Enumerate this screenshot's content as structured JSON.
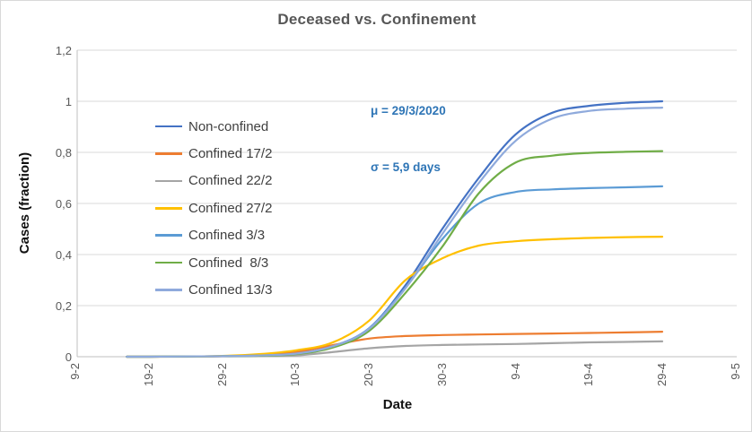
{
  "chart": {
    "title": "Deceased vs. Confinement",
    "annotation": {
      "line1": "μ = 29/3/2020",
      "line2": "σ = 5,9 days",
      "color": "#2e75b6"
    }
  },
  "chart_data": {
    "type": "line",
    "title": "Deceased vs. Confinement",
    "xlabel": "Date",
    "ylabel": "Cases (fraction)",
    "ylim": [
      0,
      1.2
    ],
    "grid": "horizontal",
    "legend_position": "inside-left",
    "annotation_lines": [
      "μ = 29/3/2020",
      "σ = 5,9 days"
    ],
    "y_tick_labels": [
      "1,2",
      "1",
      "0,8",
      "0,6",
      "0,4",
      "0,2",
      "0"
    ],
    "y_tick_values": [
      1.2,
      1.0,
      0.8,
      0.6,
      0.4,
      0.2,
      0
    ],
    "x_tick_labels": [
      "9-2",
      "19-2",
      "29-2",
      "10-3",
      "20-3",
      "30-3",
      "9-4",
      "19-4",
      "29-4",
      "9-5"
    ],
    "x_tick_day_offsets": [
      0,
      10,
      20,
      30,
      40,
      50,
      60,
      70,
      80,
      90
    ],
    "x_labels": [
      "16-2",
      "19-2",
      "24-2",
      "29-2",
      "5-3",
      "10-3",
      "15-3",
      "20-3",
      "25-3",
      "30-3",
      "4-4",
      "9-4",
      "14-4",
      "19-4",
      "24-4",
      "29-4"
    ],
    "x_days_since_9_2": [
      7,
      10,
      15,
      20,
      25,
      30,
      35,
      40,
      45,
      50,
      55,
      60,
      65,
      70,
      75,
      80
    ],
    "series": [
      {
        "name": "Non-confined",
        "color": "#4472C4",
        "values": [
          0,
          0,
          0.001,
          0.002,
          0.005,
          0.012,
          0.04,
          0.11,
          0.28,
          0.5,
          0.7,
          0.87,
          0.955,
          0.982,
          0.994,
          1.0
        ]
      },
      {
        "name": "Confined 17/2",
        "color": "#ED7D31",
        "values": [
          0,
          0,
          0.001,
          0.002,
          0.008,
          0.018,
          0.045,
          0.071,
          0.081,
          0.085,
          0.087,
          0.089,
          0.091,
          0.093,
          0.095,
          0.098
        ]
      },
      {
        "name": "Confined 22/2",
        "color": "#A5A5A5",
        "values": [
          0,
          0,
          0.0,
          0.001,
          0.002,
          0.005,
          0.018,
          0.033,
          0.042,
          0.046,
          0.048,
          0.05,
          0.053,
          0.056,
          0.058,
          0.06
        ]
      },
      {
        "name": "Confined 27/2",
        "color": "#FFC000",
        "values": [
          0,
          0,
          0.001,
          0.003,
          0.01,
          0.025,
          0.055,
          0.14,
          0.3,
          0.385,
          0.435,
          0.452,
          0.46,
          0.465,
          0.468,
          0.47
        ]
      },
      {
        "name": "Confined 3/3",
        "color": "#5B9BD5",
        "values": [
          0,
          0,
          0.001,
          0.002,
          0.005,
          0.012,
          0.04,
          0.11,
          0.27,
          0.46,
          0.6,
          0.645,
          0.655,
          0.66,
          0.663,
          0.667
        ]
      },
      {
        "name": "Confined  8/3",
        "color": "#70AD47",
        "values": [
          0,
          0,
          0.001,
          0.002,
          0.004,
          0.01,
          0.035,
          0.1,
          0.25,
          0.43,
          0.64,
          0.76,
          0.787,
          0.798,
          0.802,
          0.805
        ]
      },
      {
        "name": "Confined 13/3",
        "color": "#8FAADC",
        "values": [
          0,
          0,
          0.001,
          0.002,
          0.005,
          0.012,
          0.04,
          0.108,
          0.268,
          0.48,
          0.68,
          0.845,
          0.932,
          0.962,
          0.971,
          0.975
        ]
      }
    ]
  }
}
